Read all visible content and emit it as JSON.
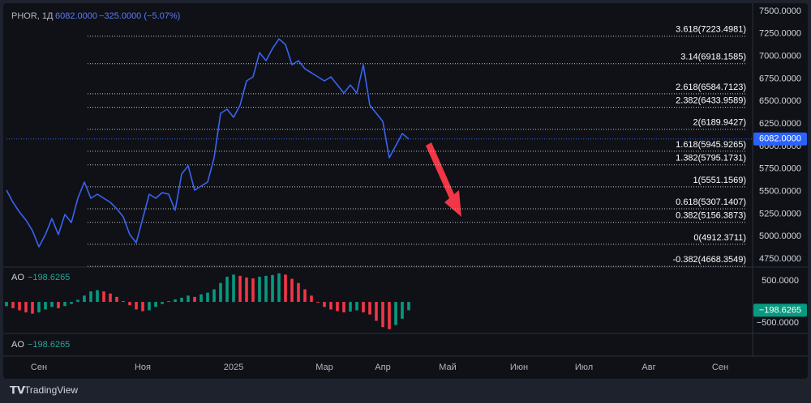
{
  "header": {
    "symbol": "PHOR, 1Д",
    "price": "6082.0000",
    "change": "−325.0000 (−5.07%)"
  },
  "brand": "TradingView",
  "chart_data": [
    {
      "type": "line",
      "color": "#3a63f0",
      "categories": [
        null,
        null,
        null,
        null,
        null,
        "Сен",
        null,
        null,
        null,
        null,
        null,
        null,
        null,
        null,
        null,
        null,
        null,
        null,
        null,
        null,
        null,
        "Ноя",
        null,
        null,
        null,
        null,
        null,
        null,
        null,
        null,
        null,
        null,
        null,
        null,
        null,
        "2025",
        null,
        null,
        null,
        null,
        null,
        null,
        null,
        null,
        null,
        null,
        null,
        null,
        null,
        "Мар",
        null,
        null,
        null,
        null,
        null,
        null,
        null,
        null,
        "Апр",
        null,
        null,
        null,
        null,
        null,
        null,
        null,
        null,
        null,
        "Май",
        null,
        null,
        null,
        null,
        null,
        null,
        null,
        null,
        null,
        null,
        "Июн",
        null,
        null,
        null,
        null,
        null,
        null,
        null,
        null,
        null,
        "Июл",
        null,
        null,
        null,
        null,
        null,
        null,
        null,
        null,
        null,
        "Авг",
        null,
        null,
        null,
        null,
        null,
        null,
        null,
        null,
        null,
        null,
        "Сен",
        null,
        null,
        null,
        null
      ],
      "values": [
        5514,
        5379,
        5271,
        5181,
        5065,
        4885,
        5020,
        5199,
        5020,
        5244,
        5154,
        5424,
        5604,
        5424,
        5469,
        5424,
        5379,
        5307,
        5217,
        5020,
        4930,
        5199,
        5469,
        5424,
        5487,
        5469,
        5289,
        5694,
        5784,
        5514,
        5559,
        5604,
        5873,
        6368,
        6413,
        6323,
        6458,
        6727,
        6772,
        7042,
        6952,
        7087,
        7194,
        7132,
        6907,
        6952,
        6862,
        6817,
        6772,
        6727,
        6772,
        6682,
        6592,
        6682,
        6592,
        6907,
        6458,
        6368,
        6278,
        5873,
        6008,
        6143,
        6082,
        null,
        null,
        null,
        null,
        null,
        null,
        null,
        null,
        null,
        null,
        null,
        null,
        null,
        null,
        null,
        null,
        null,
        null,
        null,
        null,
        null,
        null,
        null,
        null,
        null,
        null,
        null,
        null,
        null,
        null,
        null,
        null,
        null,
        null,
        null,
        null,
        null,
        null,
        null,
        null,
        null,
        null,
        null,
        null,
        null,
        null,
        null,
        null,
        null,
        null,
        null,
        null
      ],
      "ylim": [
        4660,
        7626
      ],
      "yticks": [
        {
          "value": 7500,
          "label": "7500.0000"
        },
        {
          "value": 7250,
          "label": "7250.0000"
        },
        {
          "value": 7000,
          "label": "7000.0000"
        },
        {
          "value": 6750,
          "label": "6750.0000"
        },
        {
          "value": 6500,
          "label": "6500.0000"
        },
        {
          "value": 6250,
          "label": "6250.0000"
        },
        {
          "value": 6000,
          "label": "6000.0000"
        },
        {
          "value": 5750,
          "label": "5750.0000"
        },
        {
          "value": 5500,
          "label": "5500.0000"
        },
        {
          "value": 5250,
          "label": "5250.0000"
        },
        {
          "value": 5000,
          "label": "5000.0000"
        },
        {
          "value": 4750,
          "label": "4750.0000"
        }
      ],
      "last_price": {
        "value": 6082,
        "label": "6082.0000"
      },
      "levels": [
        {
          "value": 7223.4981,
          "label": "3.618(7223.4981)"
        },
        {
          "value": 6918.1585,
          "label": "3.14(6918.1585)"
        },
        {
          "value": 6584.7123,
          "label": "2.618(6584.7123)"
        },
        {
          "value": 6433.9589,
          "label": "2.382(6433.9589)"
        },
        {
          "value": 6189.9427,
          "label": "2(6189.9427)"
        },
        {
          "value": 5945.9265,
          "label": "1.618(5945.9265)"
        },
        {
          "value": 5795.1731,
          "label": "1.382(5795.1731)"
        },
        {
          "value": 5551.1569,
          "label": "1(5551.1569)"
        },
        {
          "value": 5307.1407,
          "label": "0.618(5307.1407)"
        },
        {
          "value": 5156.3873,
          "label": "0.382(5156.3873)"
        },
        {
          "value": 4912.3711,
          "label": "0(4912.3711)"
        },
        {
          "value": 4668.3549,
          "label": "-0.382(4668.3549)"
        }
      ]
    },
    {
      "type": "bar",
      "title": "AO",
      "rising_color": "#089981",
      "falling_color": "#f23645",
      "values": [
        -100,
        -150,
        -200,
        -250,
        -280,
        -250,
        -180,
        -120,
        -150,
        -100,
        -50,
        50,
        150,
        250,
        280,
        250,
        200,
        120,
        20,
        -80,
        -180,
        -220,
        -200,
        -120,
        -50,
        20,
        60,
        100,
        150,
        120,
        180,
        220,
        300,
        450,
        600,
        650,
        620,
        580,
        560,
        600,
        620,
        640,
        680,
        650,
        550,
        450,
        300,
        150,
        -20,
        -120,
        -180,
        -220,
        -250,
        -230,
        -200,
        -250,
        -300,
        -450,
        -600,
        -650,
        -550,
        -400,
        -198.6265,
        null,
        null,
        null,
        null,
        null,
        null,
        null,
        null,
        null,
        null,
        null,
        null,
        null,
        null,
        null,
        null,
        null,
        null,
        null,
        null,
        null,
        null,
        null,
        null,
        null,
        null,
        null,
        null,
        null,
        null,
        null,
        null,
        null,
        null,
        null,
        null,
        null,
        null,
        null,
        null,
        null,
        null,
        null,
        null,
        null,
        null,
        null,
        null,
        null,
        null,
        null,
        null
      ],
      "ylim": [
        -750,
        830
      ],
      "yticks": [
        {
          "value": 500,
          "label": "500.0000"
        },
        {
          "value": -500,
          "label": "−500.0000"
        }
      ],
      "last_value": {
        "value": -198.6265,
        "label": "−198.6265"
      }
    }
  ]
}
